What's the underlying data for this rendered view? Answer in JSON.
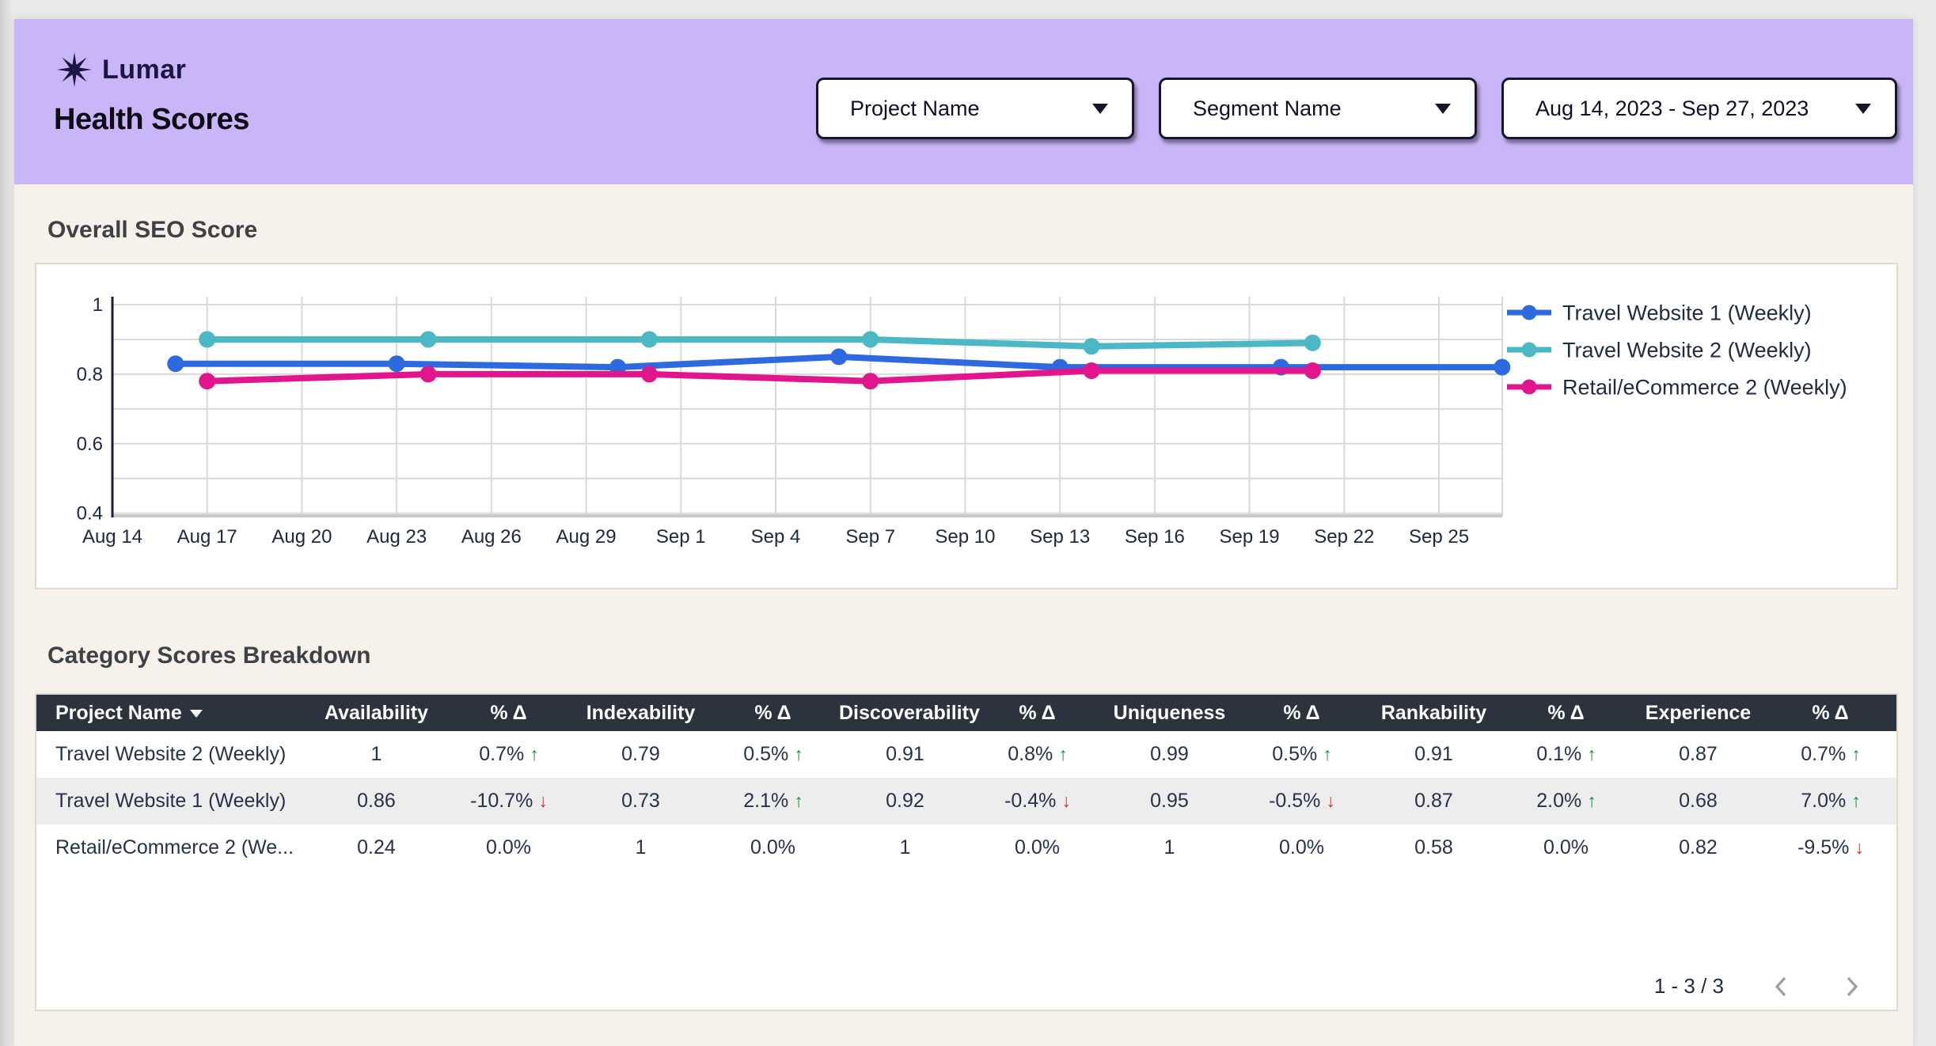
{
  "header": {
    "brand": "Lumar",
    "title": "Health Scores",
    "filters": [
      {
        "label": "Project Name"
      },
      {
        "label": "Segment Name"
      },
      {
        "label": "Aug 14, 2023 - Sep 27, 2023"
      }
    ]
  },
  "sections": {
    "chart_title": "Overall SEO Score",
    "table_title": "Category Scores Breakdown"
  },
  "icons": {
    "dropdown_caret": "caret-down triangle",
    "sort_desc": "caret-down triangle",
    "trend_up": "↑",
    "trend_down": "↓",
    "prev": "chevron-left",
    "next": "chevron-right",
    "logo": "eight-point star"
  },
  "colors": {
    "header_purple": "#c9b5f7",
    "brand_navy": "#1b1642",
    "page_cream": "#f6f2eb",
    "table_header_bg": "#2b343e",
    "positive_green": "#1e8e3e",
    "negative_red": "#d93025",
    "grid_gray": "#d9d9d9"
  },
  "chart_data": {
    "type": "line",
    "title": "Overall SEO Score",
    "legend_position": "right",
    "grid": true,
    "x_axis": {
      "unit": "date",
      "tick_interval_days": 3,
      "tick_labels": [
        "Aug 14",
        "Aug 17",
        "Aug 20",
        "Aug 23",
        "Aug 26",
        "Aug 29",
        "Sep 1",
        "Sep 4",
        "Sep 7",
        "Sep 10",
        "Sep 13",
        "Sep 16",
        "Sep 19",
        "Sep 22",
        "Sep 25"
      ]
    },
    "y_axis": {
      "min": 0.4,
      "max": 1.0,
      "minor_step": 0.1,
      "tick_values": [
        1,
        0.8,
        0.6,
        0.4
      ],
      "tick_labels": [
        "1",
        "0.8",
        "0.6",
        "0.4"
      ]
    },
    "series": [
      {
        "name": "Travel Website 1 (Weekly)",
        "color": "#2d6ae0",
        "points": [
          {
            "date": "Aug 16",
            "day": 2,
            "value": 0.83
          },
          {
            "date": "Aug 23",
            "day": 9,
            "value": 0.83
          },
          {
            "date": "Aug 30",
            "day": 16,
            "value": 0.82
          },
          {
            "date": "Sep 6",
            "day": 23,
            "value": 0.85
          },
          {
            "date": "Sep 13",
            "day": 30,
            "value": 0.82
          },
          {
            "date": "Sep 20",
            "day": 37,
            "value": 0.82
          },
          {
            "date": "Sep 27",
            "day": 44,
            "value": 0.82
          }
        ]
      },
      {
        "name": "Travel Website 2 (Weekly)",
        "color": "#4bb8c5",
        "points": [
          {
            "date": "Aug 17",
            "day": 3,
            "value": 0.9
          },
          {
            "date": "Aug 24",
            "day": 10,
            "value": 0.9
          },
          {
            "date": "Aug 31",
            "day": 17,
            "value": 0.9
          },
          {
            "date": "Sep 7",
            "day": 24,
            "value": 0.9
          },
          {
            "date": "Sep 14",
            "day": 31,
            "value": 0.88
          },
          {
            "date": "Sep 21",
            "day": 38,
            "value": 0.89
          }
        ]
      },
      {
        "name": "Retail/eCommerce 2 (Weekly)",
        "color": "#e2168c",
        "points": [
          {
            "date": "Aug 17",
            "day": 3,
            "value": 0.78
          },
          {
            "date": "Aug 24",
            "day": 10,
            "value": 0.8
          },
          {
            "date": "Aug 31",
            "day": 17,
            "value": 0.8
          },
          {
            "date": "Sep 7",
            "day": 24,
            "value": 0.78
          },
          {
            "date": "Sep 14",
            "day": 31,
            "value": 0.81
          },
          {
            "date": "Sep 21",
            "day": 38,
            "value": 0.81
          }
        ]
      }
    ]
  },
  "table": {
    "columns": [
      {
        "label": "Project Name",
        "sorted": true
      },
      {
        "label": "Availability"
      },
      {
        "label": "% Δ"
      },
      {
        "label": "Indexability"
      },
      {
        "label": "% Δ"
      },
      {
        "label": "Discoverability"
      },
      {
        "label": "% Δ"
      },
      {
        "label": "Uniqueness"
      },
      {
        "label": "% Δ"
      },
      {
        "label": "Rankability"
      },
      {
        "label": "% Δ"
      },
      {
        "label": "Experience"
      },
      {
        "label": "% Δ"
      }
    ],
    "rows": [
      {
        "cells": [
          "Travel Website 2 (Weekly)",
          "1",
          "0.7%",
          "0.79",
          "0.5%",
          "0.91",
          "0.8%",
          "0.99",
          "0.5%",
          "0.91",
          "0.1%",
          "0.87",
          "0.7%"
        ],
        "trends": [
          null,
          null,
          "up",
          null,
          "up",
          null,
          "up",
          null,
          "up",
          null,
          "up",
          null,
          "up"
        ]
      },
      {
        "cells": [
          "Travel Website 1 (Weekly)",
          "0.86",
          "-10.7%",
          "0.73",
          "2.1%",
          "0.92",
          "-0.4%",
          "0.95",
          "-0.5%",
          "0.87",
          "2.0%",
          "0.68",
          "7.0%"
        ],
        "trends": [
          null,
          null,
          "down",
          null,
          "up",
          null,
          "down",
          null,
          "down",
          null,
          "up",
          null,
          "up"
        ]
      },
      {
        "cells": [
          "Retail/eCommerce 2 (We...",
          "0.24",
          "0.0%",
          "1",
          "0.0%",
          "1",
          "0.0%",
          "1",
          "0.0%",
          "0.58",
          "0.0%",
          "0.82",
          "-9.5%"
        ],
        "trends": [
          null,
          null,
          null,
          null,
          null,
          null,
          null,
          null,
          null,
          null,
          null,
          null,
          "down"
        ]
      }
    ],
    "pagination": {
      "label": "1 - 3 / 3"
    }
  }
}
